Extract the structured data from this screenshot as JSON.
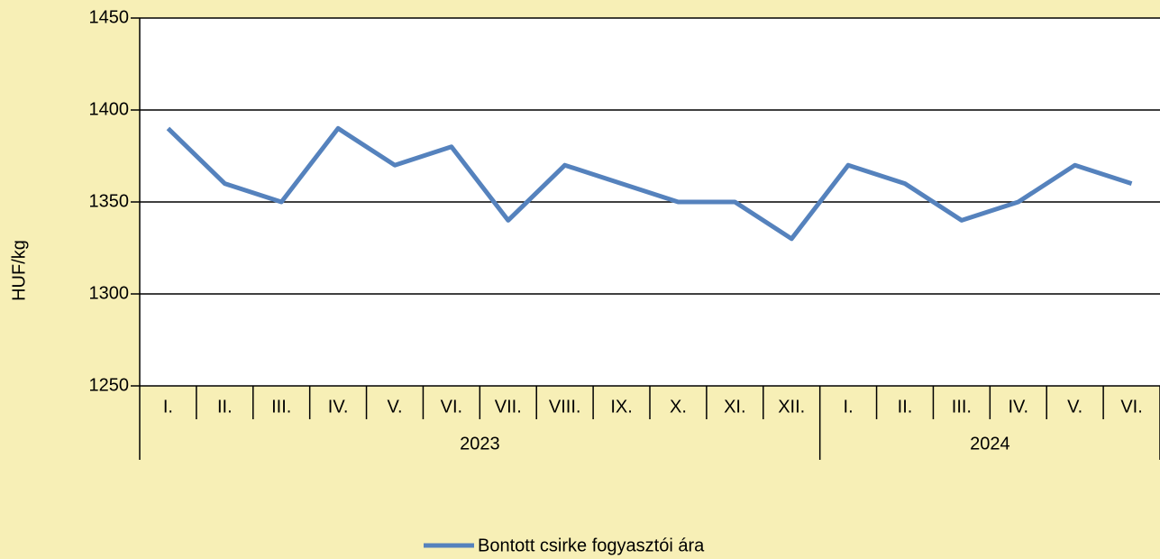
{
  "chart_data": {
    "type": "line",
    "y_label": "HUF/kg",
    "groups": [
      {
        "label": "2023",
        "categories": [
          "I.",
          "II.",
          "III.",
          "IV.",
          "V.",
          "VI.",
          "VII.",
          "VIII.",
          "IX.",
          "X.",
          "XI.",
          "XII."
        ]
      },
      {
        "label": "2024",
        "categories": [
          "I.",
          "II.",
          "III.",
          "IV.",
          "V.",
          "VI."
        ]
      }
    ],
    "series": [
      {
        "name": "Bontott csirke fogyasztói ára",
        "color": "#5582bd",
        "values": [
          1390,
          1360,
          1350,
          1390,
          1370,
          1380,
          1340,
          1370,
          1360,
          1350,
          1350,
          1330,
          1370,
          1360,
          1340,
          1350,
          1370,
          1360
        ]
      }
    ],
    "ylim": [
      1250,
      1450
    ],
    "yticks": [
      1250,
      1300,
      1350,
      1400,
      1450
    ],
    "grid": true,
    "legend": "bottom"
  }
}
